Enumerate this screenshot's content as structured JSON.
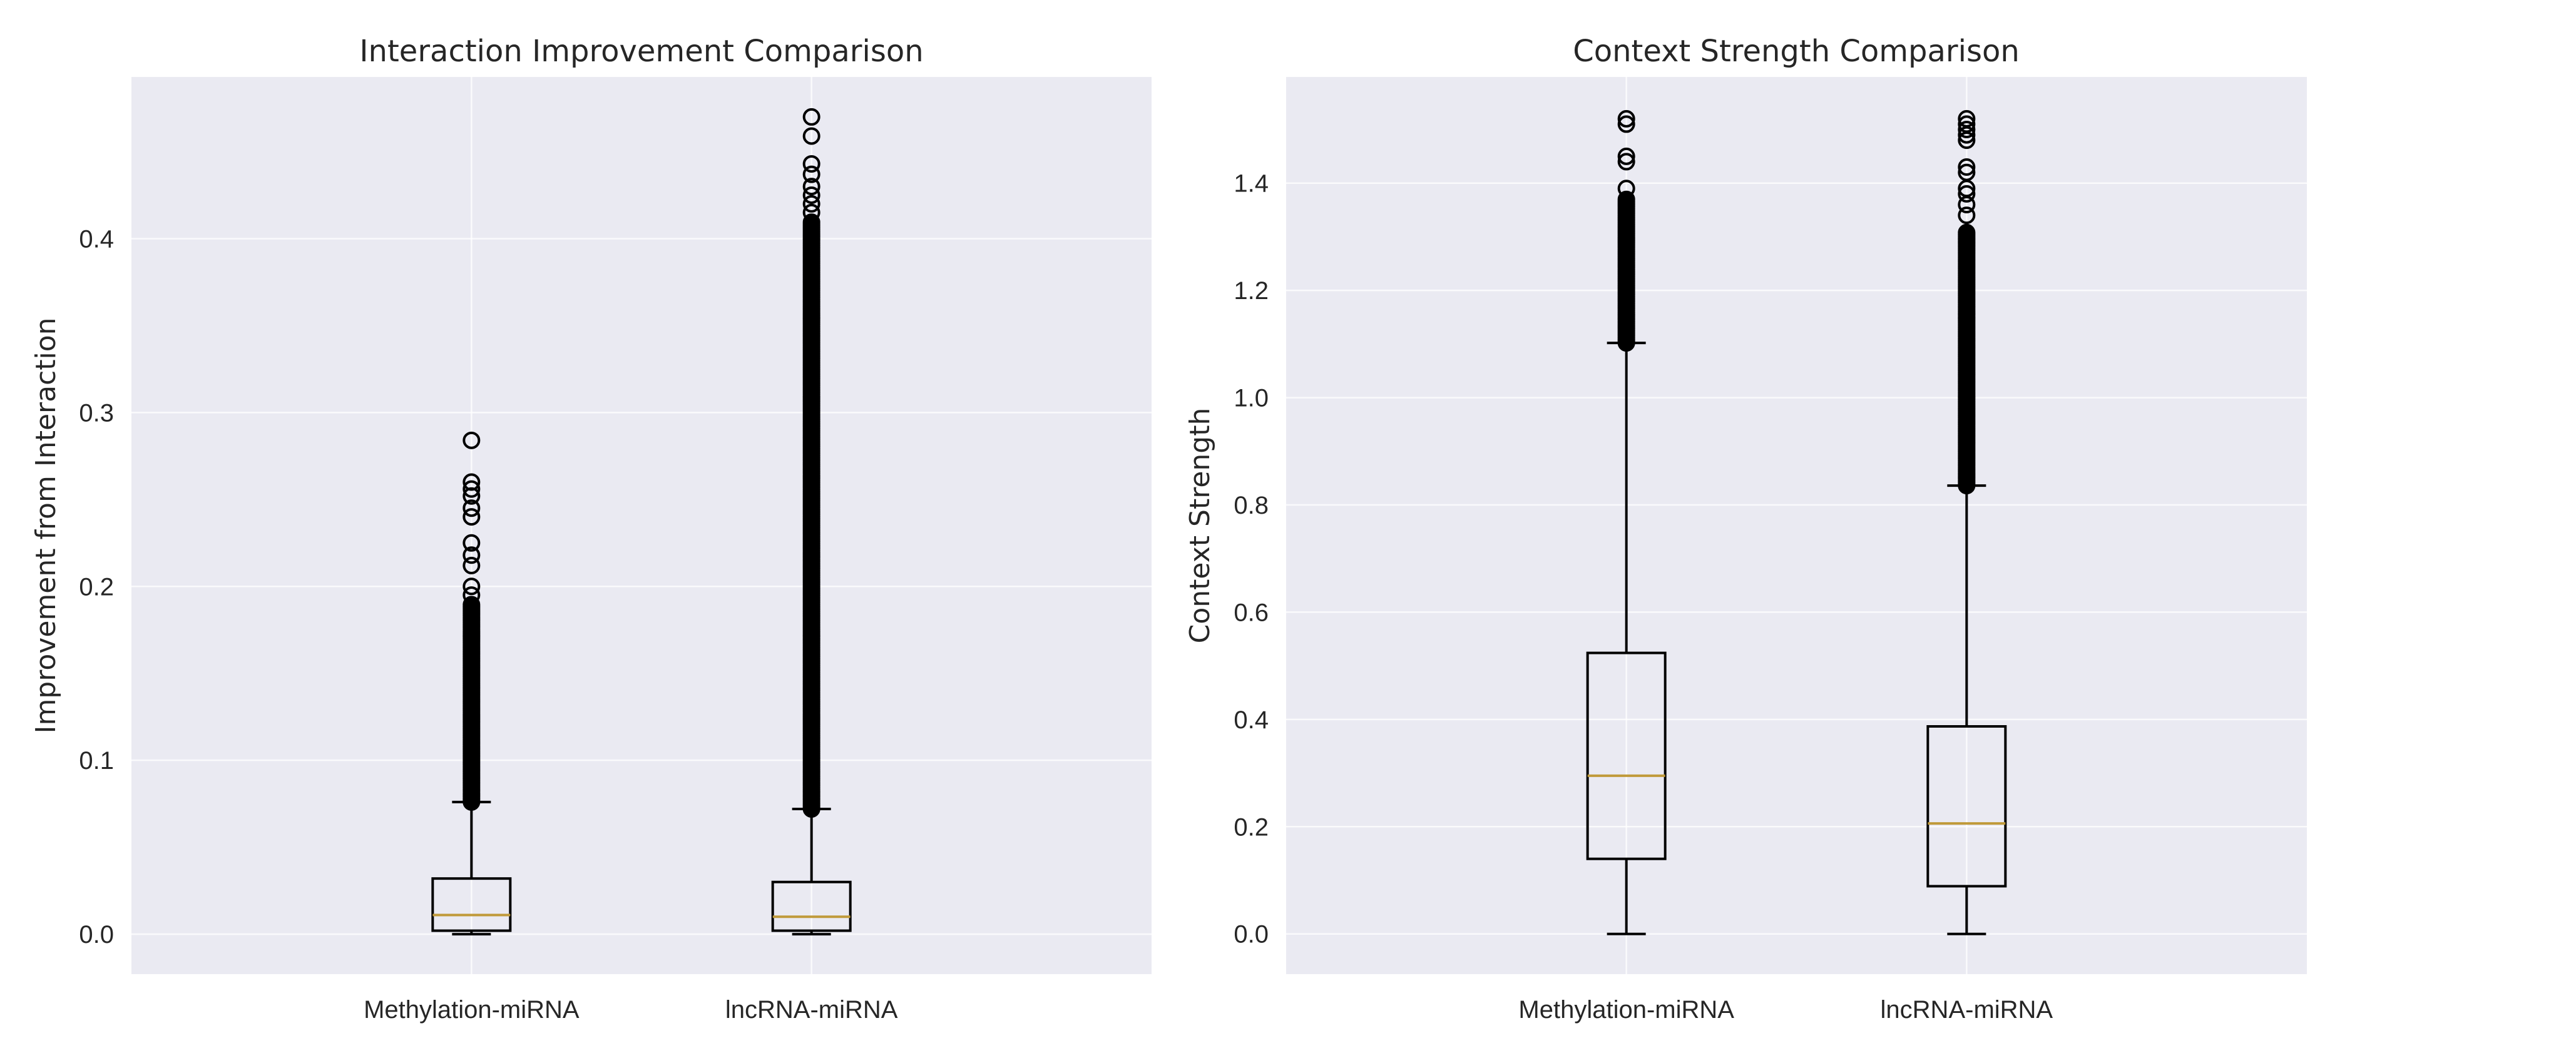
{
  "colors": {
    "background": "#eaeaf2",
    "grid": "#ffffff",
    "box": "#000000",
    "median": "#c09a3a"
  },
  "chart_data": [
    {
      "type": "box",
      "title": "Interaction Improvement Comparison",
      "xlabel": "",
      "ylabel": "Improvement from Interaction",
      "ylim": [
        -0.023,
        0.493
      ],
      "yticks": [
        0.0,
        0.1,
        0.2,
        0.3,
        0.4
      ],
      "ytick_labels": [
        "0.0",
        "0.1",
        "0.2",
        "0.3",
        "0.4"
      ],
      "grid": true,
      "categories": [
        "Methylation-miRNA",
        "lncRNA-miRNA"
      ],
      "series": [
        {
          "name": "Methylation-miRNA",
          "whisker_low": 0.0,
          "q1": 0.002,
          "median": 0.011,
          "q3": 0.032,
          "whisker_high": 0.076,
          "outliers_dense_range": [
            0.076,
            0.19
          ],
          "outliers_sparse": [
            0.195,
            0.2,
            0.212,
            0.218,
            0.225,
            0.24,
            0.245,
            0.252,
            0.256,
            0.26,
            0.284
          ]
        },
        {
          "name": "lncRNA-miRNA",
          "whisker_low": 0.0,
          "q1": 0.002,
          "median": 0.01,
          "q3": 0.03,
          "whisker_high": 0.072,
          "outliers_dense_range": [
            0.072,
            0.41
          ],
          "outliers_sparse": [
            0.415,
            0.42,
            0.425,
            0.43,
            0.437,
            0.443,
            0.459,
            0.47
          ]
        }
      ]
    },
    {
      "type": "box",
      "title": "Context Strength Comparison",
      "xlabel": "",
      "ylabel": "Context Strength",
      "ylim": [
        -0.075,
        1.598
      ],
      "yticks": [
        0.0,
        0.2,
        0.4,
        0.6,
        0.8,
        1.0,
        1.2,
        1.4
      ],
      "ytick_labels": [
        "0.0",
        "0.2",
        "0.4",
        "0.6",
        "0.8",
        "1.0",
        "1.2",
        "1.4"
      ],
      "grid": true,
      "categories": [
        "Methylation-miRNA",
        "lncRNA-miRNA"
      ],
      "series": [
        {
          "name": "Methylation-miRNA",
          "whisker_low": 0.0,
          "q1": 0.14,
          "median": 0.295,
          "q3": 0.524,
          "whisker_high": 1.102,
          "outliers_dense_range": [
            1.102,
            1.37
          ],
          "outliers_sparse": [
            1.39,
            1.44,
            1.45,
            1.51,
            1.52
          ]
        },
        {
          "name": "lncRNA-miRNA",
          "whisker_low": 0.0,
          "q1": 0.089,
          "median": 0.206,
          "q3": 0.387,
          "whisker_high": 0.836,
          "outliers_dense_range": [
            0.836,
            1.31
          ],
          "outliers_sparse": [
            1.34,
            1.36,
            1.38,
            1.39,
            1.42,
            1.43,
            1.48,
            1.49,
            1.5,
            1.51,
            1.52
          ]
        }
      ]
    }
  ]
}
